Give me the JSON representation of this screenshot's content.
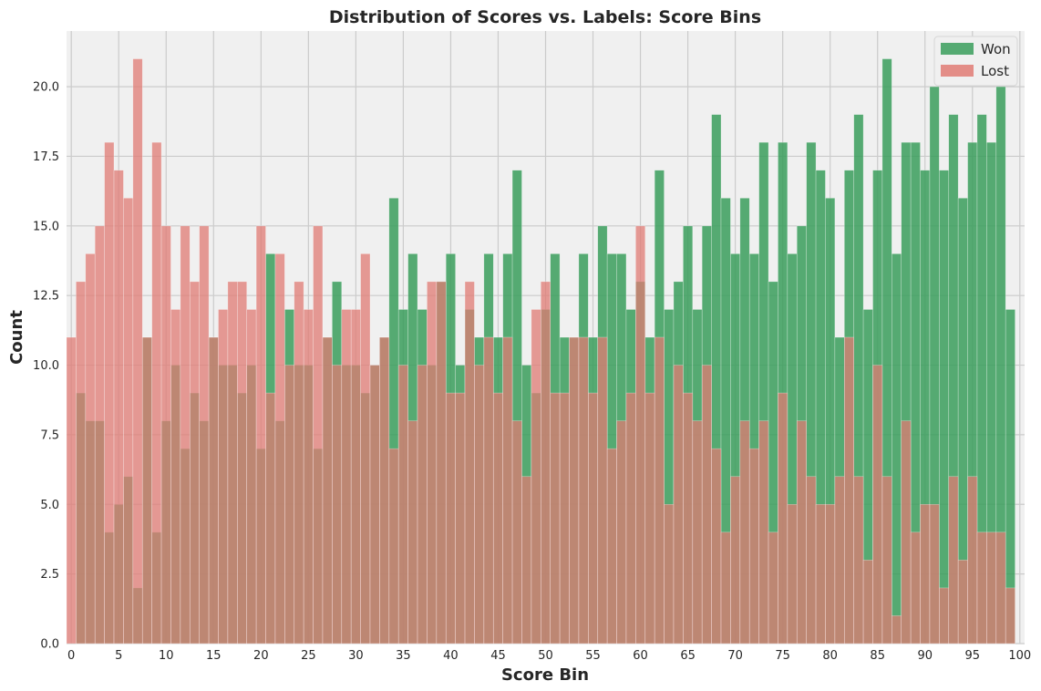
{
  "chart_data": {
    "type": "bar",
    "title": "Distribution of Scores vs. Labels: Score Bins",
    "xlabel": "Score Bin",
    "ylabel": "Count",
    "xlim": [
      -0.5,
      100.5
    ],
    "ylim": [
      0,
      22
    ],
    "x_ticks": [
      0,
      5,
      10,
      15,
      20,
      25,
      30,
      35,
      40,
      45,
      50,
      55,
      60,
      65,
      70,
      75,
      80,
      85,
      90,
      95,
      100
    ],
    "y_ticks": [
      "0.0",
      "2.5",
      "5.0",
      "7.5",
      "10.0",
      "12.5",
      "15.0",
      "17.5",
      "20.0"
    ],
    "y_tick_values": [
      0,
      2.5,
      5,
      7.5,
      10,
      12.5,
      15,
      17.5,
      20
    ],
    "grid": true,
    "legend_position": "top-right",
    "overlay": "overlapping semi-transparent bars",
    "categories": [
      0,
      1,
      2,
      3,
      4,
      5,
      6,
      7,
      8,
      9,
      10,
      11,
      12,
      13,
      14,
      15,
      16,
      17,
      18,
      19,
      20,
      21,
      22,
      23,
      24,
      25,
      26,
      27,
      28,
      29,
      30,
      31,
      32,
      33,
      34,
      35,
      36,
      37,
      38,
      39,
      40,
      41,
      42,
      43,
      44,
      45,
      46,
      47,
      48,
      49,
      50,
      51,
      52,
      53,
      54,
      55,
      56,
      57,
      58,
      59,
      60,
      61,
      62,
      63,
      64,
      65,
      66,
      67,
      68,
      69,
      70,
      71,
      72,
      73,
      74,
      75,
      76,
      77,
      78,
      79,
      80,
      81,
      82,
      83,
      84,
      85,
      86,
      87,
      88,
      89,
      90,
      91,
      92,
      93,
      94,
      95,
      96,
      97,
      98,
      99,
      100
    ],
    "series": [
      {
        "name": "Won",
        "color": "#3a9e5c",
        "values": [
          0,
          9,
          8,
          8,
          4,
          5,
          6,
          2,
          11,
          4,
          8,
          10,
          7,
          9,
          8,
          11,
          10,
          10,
          9,
          10,
          7,
          14,
          8,
          12,
          10,
          10,
          7,
          11,
          13,
          10,
          10,
          9,
          10,
          11,
          16,
          12,
          14,
          12,
          10,
          13,
          14,
          10,
          12,
          11,
          14,
          11,
          14,
          17,
          10,
          9,
          12,
          14,
          11,
          11,
          14,
          11,
          15,
          14,
          14,
          12,
          13,
          11,
          17,
          12,
          13,
          15,
          12,
          15,
          19,
          16,
          14,
          16,
          14,
          18,
          13,
          18,
          14,
          15,
          18,
          17,
          16,
          11,
          17,
          19,
          12,
          17,
          21,
          14,
          18,
          18,
          17,
          20,
          17,
          19,
          16,
          18,
          19,
          18,
          20,
          12,
          0
        ]
      },
      {
        "name": "Lost",
        "color": "#e07b74",
        "values": [
          11,
          13,
          14,
          15,
          18,
          17,
          16,
          21,
          11,
          18,
          15,
          12,
          15,
          13,
          15,
          11,
          12,
          13,
          13,
          12,
          15,
          9,
          14,
          10,
          13,
          12,
          15,
          11,
          10,
          12,
          12,
          14,
          10,
          11,
          7,
          10,
          8,
          10,
          13,
          13,
          9,
          9,
          13,
          10,
          11,
          9,
          11,
          8,
          6,
          12,
          13,
          9,
          9,
          11,
          11,
          9,
          11,
          7,
          8,
          9,
          15,
          9,
          11,
          5,
          10,
          9,
          8,
          10,
          7,
          4,
          6,
          8,
          7,
          8,
          4,
          9,
          5,
          8,
          6,
          5,
          5,
          6,
          11,
          6,
          3,
          10,
          6,
          1,
          8,
          4,
          5,
          5,
          2,
          6,
          3,
          6,
          4,
          4,
          4,
          2,
          0
        ]
      }
    ],
    "overlap_color": "#8b6649",
    "plot_background": "#f0f0f0",
    "grid_color": "#cbcbcb"
  }
}
